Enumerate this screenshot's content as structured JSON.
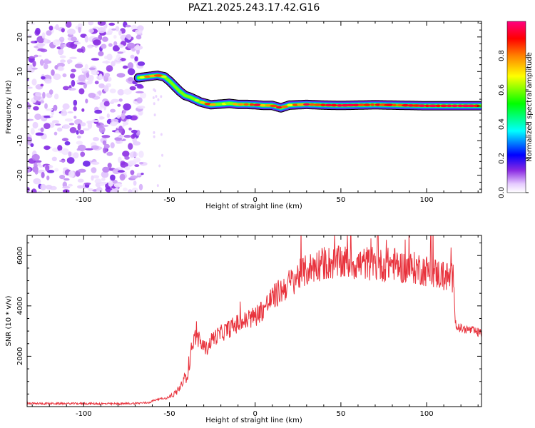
{
  "chart_data": [
    {
      "type": "heatmap",
      "title": "PAZ1.2025.243.17.42.G16",
      "xlabel": "Height of straight line (km)",
      "ylabel": "Frequency (Hz)",
      "xlim": [
        -133,
        132
      ],
      "ylim": [
        -25,
        24.5
      ],
      "xticks": [
        -100,
        -50,
        0,
        50,
        100
      ],
      "yticks": [
        -20,
        -10,
        0,
        10,
        20
      ],
      "colorbar": {
        "label": "Normalized spectral amplitude",
        "range": [
          0,
          1
        ],
        "ticks": [
          0.0,
          0.2,
          0.4,
          0.6,
          0.8
        ],
        "stops": [
          "#ffffff",
          "#e6ccff",
          "#7c00ff",
          "#0000ff",
          "#00ffff",
          "#00ff00",
          "#ffff00",
          "#ff8000",
          "#ff0000",
          "#ff0080"
        ]
      },
      "ridge": {
        "description": "Frequency of dominant spectral peak vs height",
        "x": [
          -68,
          -62,
          -57,
          -53,
          -50,
          -47,
          -44,
          -41,
          -38,
          -35,
          -32,
          -29,
          -26,
          -20,
          -15,
          -10,
          -5,
          0,
          5,
          10,
          15,
          20,
          30,
          40,
          50,
          60,
          70,
          80,
          90,
          100,
          110,
          120,
          132
        ],
        "y": [
          8.2,
          8.6,
          8.9,
          8.5,
          7.3,
          5.8,
          4.3,
          3.1,
          2.6,
          1.9,
          1.2,
          0.8,
          0.4,
          0.6,
          0.8,
          0.5,
          0.5,
          0.4,
          0.2,
          0.2,
          -0.5,
          0.3,
          0.5,
          0.3,
          0.2,
          0.3,
          0.4,
          0.3,
          0.2,
          0.1,
          0.1,
          0.1,
          0.1
        ],
        "amplitude": [
          0.65,
          0.8,
          0.85,
          0.7,
          0.5,
          0.45,
          0.4,
          0.5,
          0.45,
          0.55,
          0.7,
          0.75,
          0.85,
          0.6,
          0.65,
          0.8,
          0.85,
          0.9,
          0.8,
          0.85,
          0.88,
          0.75,
          0.88,
          0.85,
          0.92,
          0.88,
          0.9,
          0.85,
          0.92,
          0.95,
          0.95,
          0.95,
          0.95
        ]
      },
      "noise_region_x": [
        -133,
        -65
      ]
    },
    {
      "type": "line",
      "xlabel": "Height of straight line (km)",
      "ylabel": "SNR (10 * v/v)",
      "xlim": [
        -133,
        132
      ],
      "ylim": [
        0,
        6800
      ],
      "xticks": [
        -100,
        -50,
        0,
        50,
        100
      ],
      "yticks": [
        2000,
        4000,
        6000
      ],
      "color": "#e8323c",
      "series": [
        {
          "name": "SNR",
          "x": [
            -133,
            -100,
            -80,
            -70,
            -62,
            -57,
            -52,
            -47,
            -44,
            -41,
            -39,
            -37,
            -35,
            -32,
            -28,
            -25,
            -20,
            -15,
            -10,
            -5,
            0,
            5,
            10,
            15,
            20,
            25,
            30,
            35,
            40,
            45,
            50,
            55,
            60,
            65,
            70,
            75,
            80,
            85,
            90,
            95,
            100,
            105,
            110,
            114,
            116,
            117,
            120,
            125,
            132
          ],
          "y": [
            120,
            120,
            110,
            130,
            160,
            300,
            330,
            500,
            750,
            1100,
            1500,
            2400,
            2800,
            2500,
            2300,
            2700,
            2900,
            3100,
            3300,
            3400,
            3600,
            3900,
            4300,
            4600,
            4900,
            5200,
            5400,
            5600,
            5700,
            5700,
            5700,
            5750,
            5650,
            5700,
            5650,
            5600,
            5700,
            5550,
            5500,
            5500,
            5400,
            5300,
            5200,
            5100,
            5100,
            3200,
            3100,
            3050,
            2900
          ]
        }
      ]
    }
  ]
}
